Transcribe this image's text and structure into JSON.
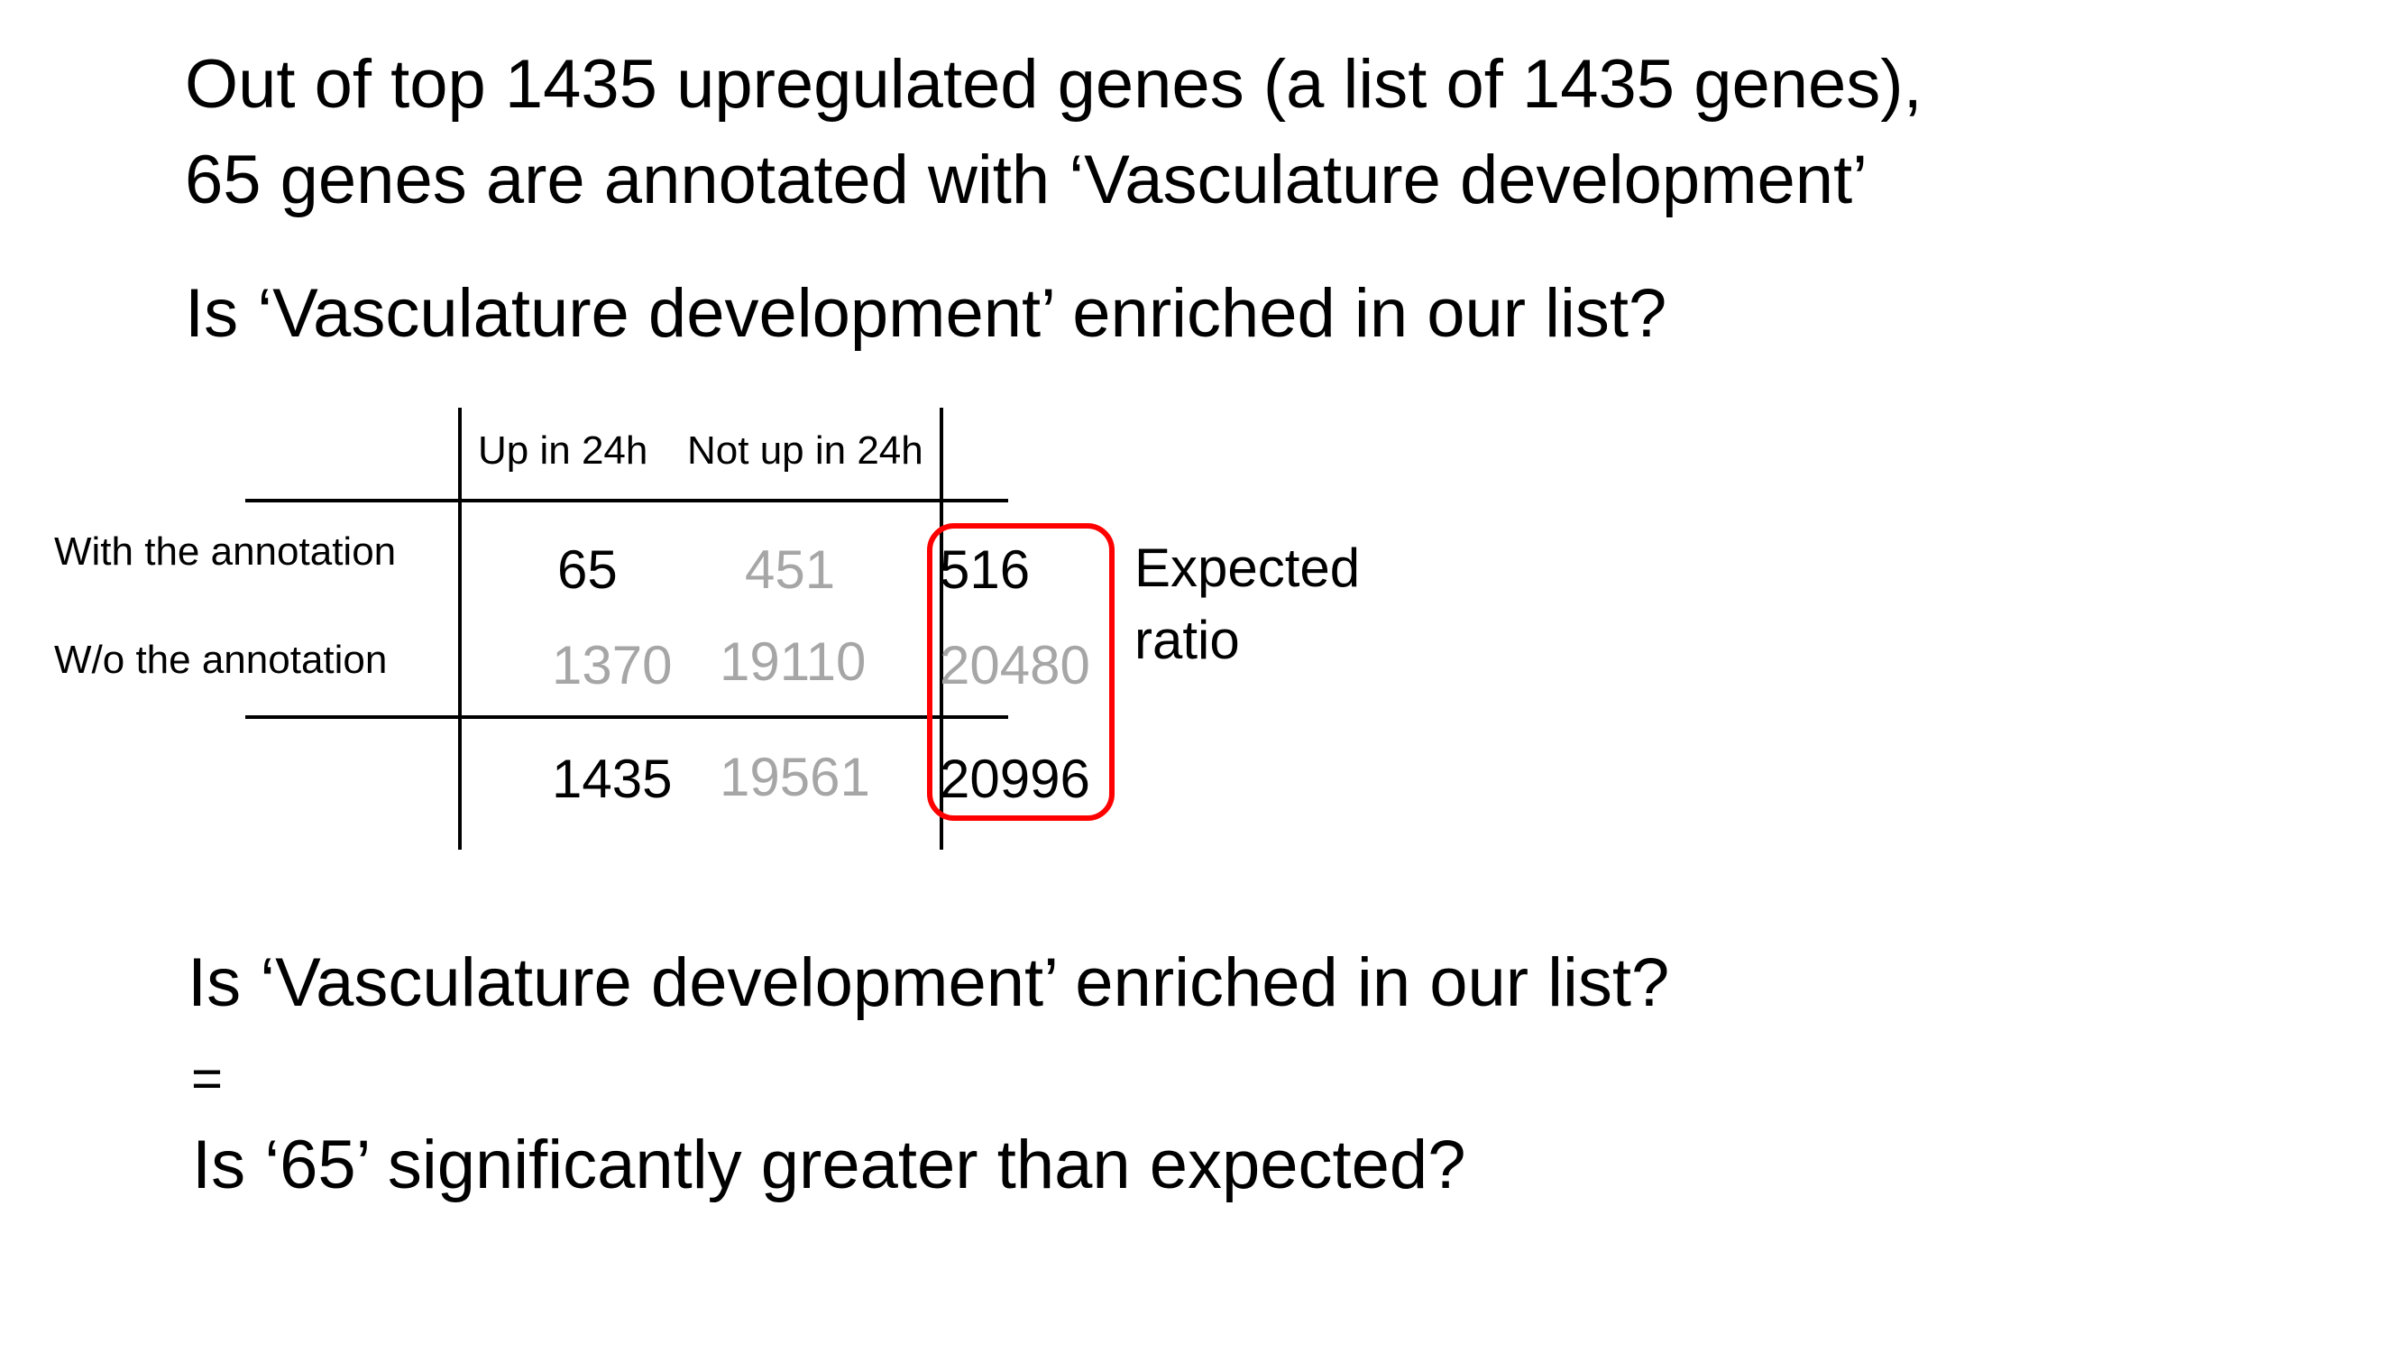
{
  "intro": {
    "line1": "Out of top 1435 upregulated genes (a list of 1435 genes),",
    "line2": "65 genes are annotated with ‘Vasculature development’",
    "question": "Is ‘Vasculature development’ enriched in our list?"
  },
  "table": {
    "col_headers": [
      "Up in 24h",
      "Not up in 24h"
    ],
    "row_labels": [
      "With the annotation",
      "W/o the annotation"
    ],
    "rows": [
      [
        "65",
        "451",
        "516"
      ],
      [
        "1370",
        "19110",
        "20480"
      ]
    ],
    "totals": [
      "1435",
      "19561",
      "20996"
    ]
  },
  "annotation": {
    "line1": "Expected",
    "line2": "ratio"
  },
  "conclusion": {
    "question": "Is ‘Vasculature development’ enriched in our list?",
    "equals": "=",
    "restated": "Is ‘65’ significantly greater than expected?"
  },
  "colors": {
    "text": "#000000",
    "muted_value": "#a6a6a6",
    "highlight": "#ff0000"
  }
}
